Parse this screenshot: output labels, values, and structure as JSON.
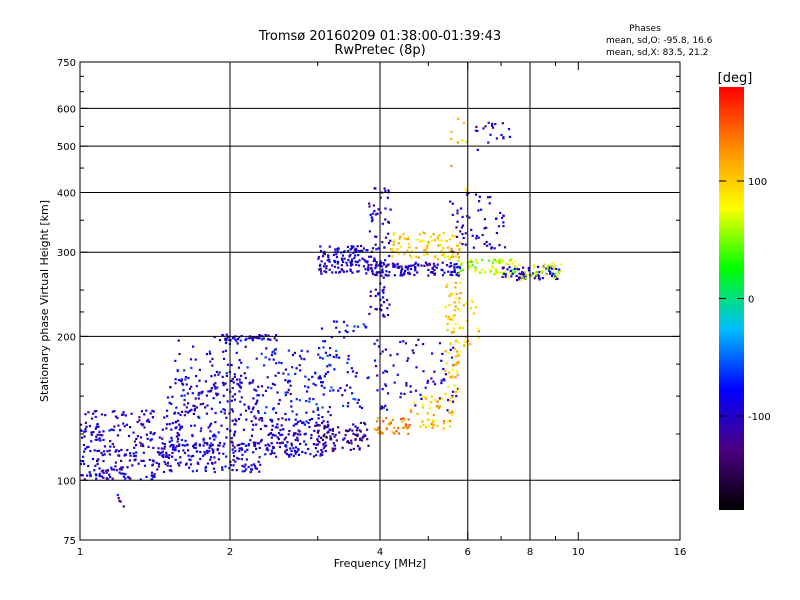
{
  "chart_data": {
    "type": "scatter",
    "title": "Tromsø 20160209 01:38:00-01:39:43",
    "subtitle": "RwPretec (8p)",
    "xlabel": "Frequency [MHz]",
    "ylabel": "Stationary phase Virtual Height [km]",
    "x_scale": "log",
    "y_scale": "log",
    "xlim": [
      1,
      16
    ],
    "ylim": [
      75,
      750
    ],
    "x_ticks": [
      1,
      2,
      4,
      6,
      8,
      10,
      16
    ],
    "x_tick_labels": [
      "1",
      "2",
      "4",
      "6",
      "8",
      "10",
      "16"
    ],
    "x_minor_ticks": [
      3,
      5,
      7,
      9
    ],
    "y_ticks": [
      75,
      100,
      200,
      300,
      400,
      500,
      600,
      750
    ],
    "y_tick_labels": [
      "75",
      "100",
      "200",
      "300",
      "400",
      "500",
      "600",
      "750"
    ],
    "y_minor_ticks": [
      125,
      150,
      175,
      225,
      250,
      350,
      450,
      550,
      650,
      700
    ],
    "grid_x": [
      2,
      4,
      6,
      8
    ],
    "grid_y": [
      100,
      200,
      300,
      400,
      500,
      600
    ],
    "stats": {
      "heading": "Phases",
      "line_o": "mean, sd,O: -95.8, 16.6",
      "line_x": "mean, sd,X:  83.5, 21.2"
    },
    "colorbar": {
      "label": "[deg]",
      "range": [
        -180,
        180
      ],
      "ticks": [
        100,
        0,
        -100
      ],
      "tick_labels": [
        "100",
        "0",
        "-100"
      ],
      "colormap": "rainbow",
      "stops": [
        "#000000",
        "#4b0082",
        "#0000ff",
        "#00bfff",
        "#00ff00",
        "#ffff00",
        "#ff8c00",
        "#ff0000"
      ]
    },
    "series": [
      {
        "regions": [
          {
            "x": [
              1.0,
              1.45
            ],
            "y": [
              100,
              112
            ],
            "phase": -100,
            "n": 90
          },
          {
            "x": [
              1.0,
              1.5
            ],
            "y": [
              112,
              140
            ],
            "phase": -100,
            "n": 160
          },
          {
            "x": [
              1.05,
              1.3
            ],
            "y": [
              88,
              94
            ],
            "phase": -95,
            "n": 5
          },
          {
            "x": [
              1.45,
              2.3
            ],
            "y": [
              104,
              120
            ],
            "phase": -95,
            "n": 160
          },
          {
            "x": [
              1.5,
              2.3
            ],
            "y": [
              118,
              165
            ],
            "phase": -95,
            "n": 220
          },
          {
            "x": [
              1.55,
              2.3
            ],
            "y": [
              160,
              200
            ],
            "phase": -90,
            "n": 60
          },
          {
            "x": [
              1.9,
              2.5
            ],
            "y": [
              196,
              202
            ],
            "phase": -95,
            "n": 40
          },
          {
            "x": [
              2.3,
              3.2
            ],
            "y": [
              112,
              135
            ],
            "phase": -95,
            "n": 160
          },
          {
            "x": [
              2.3,
              3.2
            ],
            "y": [
              135,
              190
            ],
            "phase": -85,
            "n": 110
          },
          {
            "x": [
              3.0,
              3.8
            ],
            "y": [
              115,
              132
            ],
            "phase": -120,
            "n": 80
          },
          {
            "x": [
              3.0,
              3.8
            ],
            "y": [
              140,
              215
            ],
            "phase": -80,
            "n": 60
          },
          {
            "x": [
              3.0,
              3.9
            ],
            "y": [
              270,
              310
            ],
            "phase": -100,
            "n": 130
          },
          {
            "x": [
              3.8,
              4.2
            ],
            "y": [
              220,
              410
            ],
            "phase": -100,
            "n": 90
          },
          {
            "x": [
              3.9,
              4.6
            ],
            "y": [
              125,
              135
            ],
            "phase": 130,
            "n": 40
          },
          {
            "x": [
              3.9,
              5.8
            ],
            "y": [
              140,
              200
            ],
            "phase": -95,
            "n": 80
          },
          {
            "x": [
              3.9,
              5.8
            ],
            "y": [
              268,
              286
            ],
            "phase": -100,
            "n": 120
          },
          {
            "x": [
              4.2,
              5.8
            ],
            "y": [
              290,
              330
            ],
            "phase": 100,
            "n": 90
          },
          {
            "x": [
              4.6,
              5.6
            ],
            "y": [
              128,
              150
            ],
            "phase": 105,
            "n": 50
          },
          {
            "x": [
              5.4,
              5.8
            ],
            "y": [
              150,
              260
            ],
            "phase": 100,
            "n": 60
          },
          {
            "x": [
              5.5,
              6.4
            ],
            "y": [
              190,
              240
            ],
            "phase": 100,
            "n": 30
          },
          {
            "x": [
              5.5,
              7.2
            ],
            "y": [
              300,
              400
            ],
            "phase": -100,
            "n": 60
          },
          {
            "x": [
              5.7,
              7.5
            ],
            "y": [
              270,
              290
            ],
            "phase": 60,
            "n": 60
          },
          {
            "x": [
              6.2,
              7.4
            ],
            "y": [
              490,
              560
            ],
            "phase": -100,
            "n": 20
          },
          {
            "x": [
              7.0,
              9.2
            ],
            "y": [
              262,
              280
            ],
            "phase": -100,
            "n": 70
          },
          {
            "x": [
              7.2,
              9.3
            ],
            "y": [
              262,
              285
            ],
            "phase": 70,
            "n": 40
          },
          {
            "x": [
              5.5,
              6.0
            ],
            "y": [
              400,
              580
            ],
            "phase": 100,
            "n": 10
          }
        ]
      }
    ]
  }
}
